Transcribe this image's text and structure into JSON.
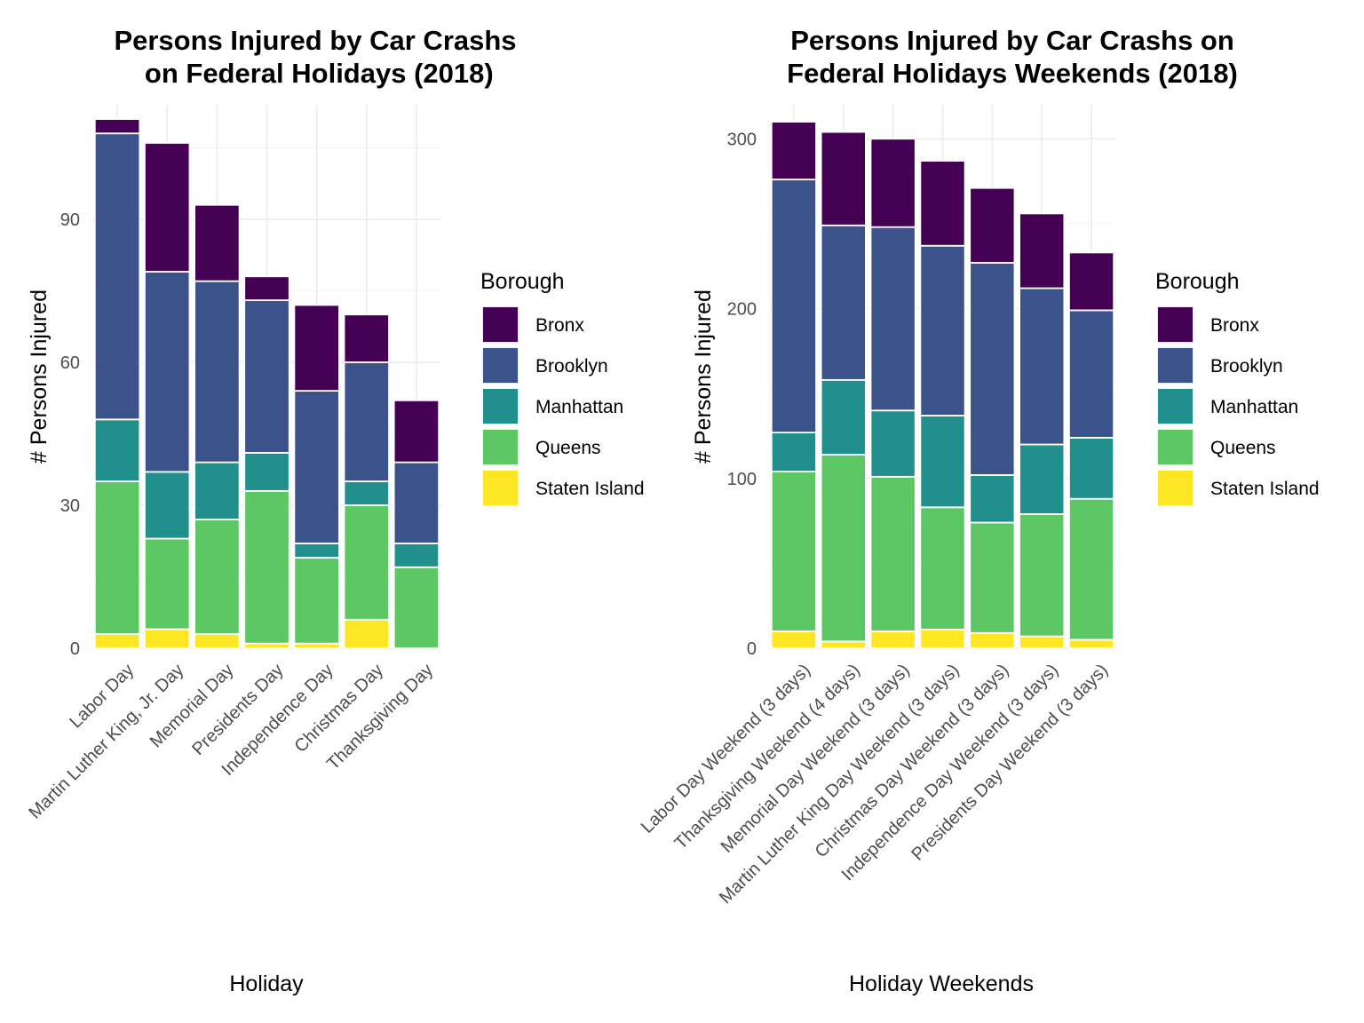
{
  "chart_data": [
    {
      "type": "bar",
      "stacked": true,
      "title_lines": [
        "Persons Injured by Car Crashs",
        " on Federal Holidays (2018)"
      ],
      "xlabel": "Holiday",
      "ylabel": "# Persons Injured",
      "ylim": [
        0,
        114
      ],
      "yticks": [
        0,
        30,
        60,
        90
      ],
      "grid": true,
      "legend": {
        "title": "Borough",
        "position": "right"
      },
      "categories": [
        "Labor Day",
        "Martin Luther King, Jr. Day",
        "Memorial Day",
        "Presidents Day",
        "Independence Day",
        "Christmas Day",
        "Thanksgiving Day"
      ],
      "series": [
        {
          "name": "Staten Island",
          "color": "#FDE725",
          "values": [
            3,
            4,
            3,
            1,
            1,
            6,
            0
          ]
        },
        {
          "name": "Queens",
          "color": "#5DC863",
          "values": [
            32,
            19,
            24,
            32,
            18,
            24,
            17
          ]
        },
        {
          "name": "Manhattan",
          "color": "#21908C",
          "values": [
            13,
            14,
            12,
            8,
            3,
            5,
            5
          ]
        },
        {
          "name": "Brooklyn",
          "color": "#3B528B",
          "values": [
            60,
            42,
            38,
            32,
            32,
            25,
            17
          ]
        },
        {
          "name": "Bronx",
          "color": "#440154",
          "values": [
            3,
            27,
            16,
            5,
            18,
            10,
            13
          ]
        }
      ]
    },
    {
      "type": "bar",
      "stacked": true,
      "title_lines": [
        "Persons Injured by Car Crashs on",
        "Federal Holidays Weekends (2018)"
      ],
      "xlabel": "Holiday Weekends",
      "ylabel": "# Persons Injured",
      "ylim": [
        0,
        320
      ],
      "yticks": [
        0,
        100,
        200,
        300
      ],
      "grid": true,
      "legend": {
        "title": "Borough",
        "position": "right"
      },
      "categories": [
        "Labor Day Weekend (3 days)",
        "Thanksgiving Weekend (4 days)",
        "Memorial Day Weekend (3 days)",
        "Martin Luther King Day Weekend (3 days)",
        "Christmas Day Weekend (3 days)",
        "Independence Day Weekend (3 days)",
        "Presidents Day Weekend (3 days)"
      ],
      "series": [
        {
          "name": "Staten Island",
          "color": "#FDE725",
          "values": [
            10,
            4,
            10,
            11,
            9,
            7,
            5
          ]
        },
        {
          "name": "Queens",
          "color": "#5DC863",
          "values": [
            94,
            110,
            91,
            72,
            65,
            72,
            83
          ]
        },
        {
          "name": "Manhattan",
          "color": "#21908C",
          "values": [
            23,
            44,
            39,
            54,
            28,
            41,
            36
          ]
        },
        {
          "name": "Brooklyn",
          "color": "#3B528B",
          "values": [
            149,
            91,
            108,
            100,
            125,
            92,
            75
          ]
        },
        {
          "name": "Bronx",
          "color": "#440154",
          "values": [
            34,
            55,
            52,
            50,
            44,
            44,
            34
          ]
        }
      ]
    }
  ]
}
